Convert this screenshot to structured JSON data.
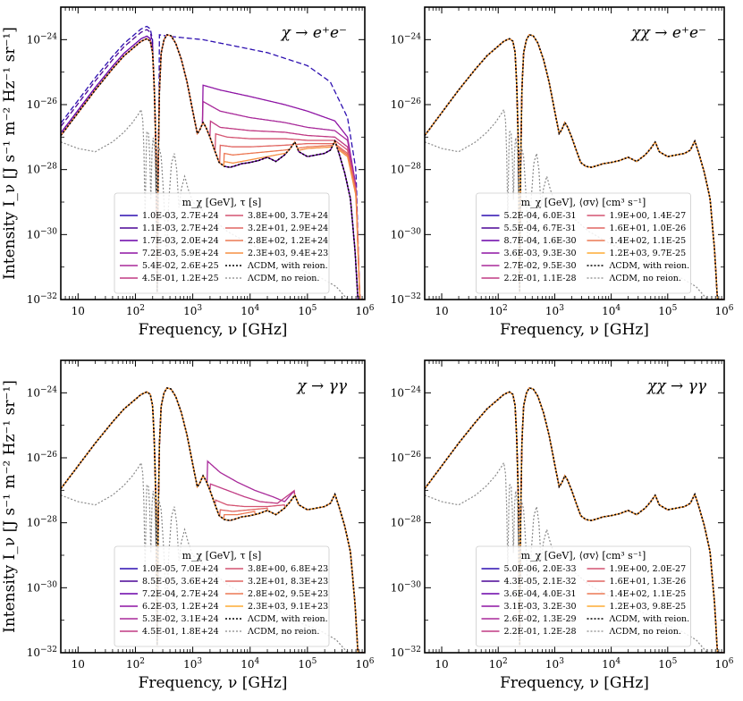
{
  "colors": {
    "c1": "#2d0fb0",
    "c2": "#4b0596",
    "c3": "#6a00a8",
    "c4": "#8e14a4",
    "c5": "#a8299a",
    "c6": "#c03a83",
    "c7": "#d45371",
    "c8": "#e16662",
    "c9": "#ec7853",
    "c10": "#f68f44",
    "c11": "#fdab33",
    "black": "#000000",
    "gray": "#888888"
  },
  "x_tick_labels": [
    "10",
    "10^2",
    "10^3",
    "10^4",
    "10^5",
    "10^6"
  ],
  "y_tick_labels": [
    "10^-24",
    "10^-26",
    "10^-28",
    "10^-30",
    "10^-32"
  ],
  "chart_data": [
    {
      "type": "line",
      "title": "χ → e⁺e⁻",
      "xlabel": "Frequency, ν [GHz]",
      "ylabel": "Intensity I_ν [J s⁻¹ m⁻² Hz⁻¹ sr⁻¹]",
      "xscale": "log",
      "yscale": "log",
      "xlim": [
        5,
        1000000
      ],
      "ylim": [
        1e-32,
        1e-23
      ],
      "legend_title": "m_χ [GeV], τ [s]",
      "legend": [
        "1.0E-03, 2.7E+24",
        "1.1E-03, 2.7E+24",
        "1.7E-03, 2.0E+24",
        "7.2E-03, 5.9E+24",
        "5.4E-02, 2.6E+25",
        "4.5E-01, 1.2E+25",
        "3.8E+00, 3.7E+24",
        "3.2E+01, 2.9E+24",
        "2.8E+02, 1.2E+24",
        "2.3E+03, 9.4E+23",
        "ΛCDM, with reion.",
        "ΛCDM, no reion."
      ],
      "series_styles": [
        "c1",
        "c2",
        "c3",
        "c4",
        "c5",
        "c6",
        "c7",
        "c8",
        "c9",
        "c10"
      ],
      "excess": [
        {
          "enhance_low": 2.4,
          "dashed": true,
          "tail": [
            {
              "f": 260,
              "y": -23.85
            },
            {
              "f": 400,
              "y": -23.9
            },
            {
              "f": 1500,
              "y": -24.0
            },
            {
              "f": 4000,
              "y": -24.15
            },
            {
              "f": 20000,
              "y": -24.4
            },
            {
              "f": 100000,
              "y": -24.8
            },
            {
              "f": 250000,
              "y": -25.3
            },
            {
              "f": 500000,
              "y": -26.4
            },
            {
              "f": 700000,
              "y": -28.0
            },
            {
              "f": 820000,
              "y": -32.0
            }
          ]
        },
        {
          "enhance_low": 1.9,
          "dashed": true,
          "tail": null
        },
        {
          "enhance_low": 1.2,
          "dashed": false,
          "tail": null
        },
        {
          "enhance_low": 1.0,
          "dashed": false,
          "tail": [
            {
              "f": 1500,
              "y": -25.4
            },
            {
              "f": 3000,
              "y": -25.55
            },
            {
              "f": 10000,
              "y": -25.75
            },
            {
              "f": 40000,
              "y": -26.0
            },
            {
              "f": 100000,
              "y": -26.2
            },
            {
              "f": 300000,
              "y": -26.5
            },
            {
              "f": 500000,
              "y": -27.0
            },
            {
              "f": 700000,
              "y": -28.5
            },
            {
              "f": 820000,
              "y": -32.0
            }
          ]
        },
        {
          "enhance_low": 1.0,
          "dashed": false,
          "tail": [
            {
              "f": 1500,
              "y": -25.9
            },
            {
              "f": 3000,
              "y": -26.2
            },
            {
              "f": 10000,
              "y": -26.4
            },
            {
              "f": 40000,
              "y": -26.55
            },
            {
              "f": 100000,
              "y": -26.7
            },
            {
              "f": 300000,
              "y": -26.8
            },
            {
              "f": 500000,
              "y": -27.1
            },
            {
              "f": 700000,
              "y": -28.5
            },
            {
              "f": 820000,
              "y": -32.0
            }
          ]
        },
        {
          "enhance_low": 1.0,
          "dashed": false,
          "tail": [
            {
              "f": 2000,
              "y": -26.5
            },
            {
              "f": 3000,
              "y": -26.7
            },
            {
              "f": 10000,
              "y": -26.8
            },
            {
              "f": 40000,
              "y": -26.85
            },
            {
              "f": 100000,
              "y": -26.95
            },
            {
              "f": 300000,
              "y": -27.0
            },
            {
              "f": 500000,
              "y": -27.3
            },
            {
              "f": 700000,
              "y": -28.6
            },
            {
              "f": 820000,
              "y": -32.0
            }
          ]
        },
        {
          "enhance_low": 1.0,
          "dashed": false,
          "tail": [
            {
              "f": 2500,
              "y": -26.9
            },
            {
              "f": 4000,
              "y": -27.0
            },
            {
              "f": 10000,
              "y": -27.05
            },
            {
              "f": 40000,
              "y": -27.05
            },
            {
              "f": 100000,
              "y": -27.1
            },
            {
              "f": 300000,
              "y": -27.1
            },
            {
              "f": 500000,
              "y": -27.4
            },
            {
              "f": 700000,
              "y": -28.6
            },
            {
              "f": 820000,
              "y": -32.0
            }
          ]
        },
        {
          "enhance_low": 1.0,
          "dashed": false,
          "tail": [
            {
              "f": 3000,
              "y": -27.25
            },
            {
              "f": 5000,
              "y": -27.3
            },
            {
              "f": 10000,
              "y": -27.3
            },
            {
              "f": 40000,
              "y": -27.25
            },
            {
              "f": 100000,
              "y": -27.2
            },
            {
              "f": 300000,
              "y": -27.2
            },
            {
              "f": 500000,
              "y": -27.5
            },
            {
              "f": 700000,
              "y": -28.7
            },
            {
              "f": 820000,
              "y": -32.0
            }
          ]
        },
        {
          "enhance_low": 1.0,
          "dashed": false,
          "tail": [
            {
              "f": 3500,
              "y": -27.5
            },
            {
              "f": 5000,
              "y": -27.55
            },
            {
              "f": 10000,
              "y": -27.5
            },
            {
              "f": 40000,
              "y": -27.4
            },
            {
              "f": 100000,
              "y": -27.3
            },
            {
              "f": 300000,
              "y": -27.25
            },
            {
              "f": 500000,
              "y": -27.55
            },
            {
              "f": 700000,
              "y": -28.7
            },
            {
              "f": 820000,
              "y": -32.0
            }
          ]
        },
        {
          "enhance_low": 1.0,
          "dashed": false,
          "tail": [
            {
              "f": 3500,
              "y": -27.75
            },
            {
              "f": 5000,
              "y": -27.8
            },
            {
              "f": 10000,
              "y": -27.7
            },
            {
              "f": 40000,
              "y": -27.5
            },
            {
              "f": 100000,
              "y": -27.35
            },
            {
              "f": 300000,
              "y": -27.3
            },
            {
              "f": 500000,
              "y": -27.6
            },
            {
              "f": 700000,
              "y": -28.8
            },
            {
              "f": 820000,
              "y": -32.0
            }
          ]
        }
      ]
    },
    {
      "type": "line",
      "title": "χχ → e⁺e⁻",
      "xlabel": "Frequency, ν [GHz]",
      "ylabel": "",
      "xscale": "log",
      "yscale": "log",
      "xlim": [
        5,
        1000000
      ],
      "ylim": [
        1e-32,
        1e-23
      ],
      "legend_title": "m_χ [GeV], ⟨σv⟩ [cm³ s⁻¹]",
      "legend": [
        "5.2E-04, 6.0E-31",
        "5.5E-04, 6.7E-31",
        "8.7E-04, 1.6E-30",
        "3.6E-03, 9.3E-30",
        "2.7E-02, 9.5E-30",
        "2.2E-01, 1.1E-28",
        "1.9E+00, 1.4E-27",
        "1.6E+01, 1.0E-26",
        "1.4E+02, 1.1E-25",
        "1.2E+03, 9.7E-25",
        "ΛCDM, with reion.",
        "ΛCDM, no reion."
      ],
      "series_styles": [
        "c1",
        "c2",
        "c3",
        "c4",
        "c5",
        "c6",
        "c7",
        "c8",
        "c9",
        "c11"
      ],
      "excess": []
    },
    {
      "type": "line",
      "title": "χ → γγ",
      "xlabel": "Frequency, ν [GHz]",
      "ylabel": "Intensity I_ν [J s⁻¹ m⁻² Hz⁻¹ sr⁻¹]",
      "xscale": "log",
      "yscale": "log",
      "xlim": [
        5,
        1000000
      ],
      "ylim": [
        1e-32,
        1e-23
      ],
      "legend_title": "m_χ [GeV], τ [s]",
      "legend": [
        "1.0E-05, 7.0E+24",
        "8.5E-05, 3.6E+24",
        "7.2E-04, 2.7E+24",
        "6.2E-03, 1.2E+24",
        "5.3E-02, 3.1E+24",
        "4.5E-01, 1.8E+24",
        "3.8E+00, 6.8E+23",
        "3.2E+01, 8.3E+23",
        "2.8E+02, 9.5E+23",
        "2.3E+03, 9.1E+23",
        "ΛCDM, with reion.",
        "ΛCDM, no reion."
      ],
      "series_styles": [
        "c1",
        "c2",
        "c3",
        "c4",
        "c5",
        "c6",
        "c7",
        "c8",
        "c9",
        "c11"
      ],
      "excess": [
        {
          "enhance_low": 1.0,
          "dashed": false,
          "tail": null
        },
        {
          "enhance_low": 1.0,
          "dashed": false,
          "tail": null
        },
        {
          "enhance_low": 1.0,
          "dashed": false,
          "tail": null
        },
        {
          "enhance_low": 1.0,
          "dashed": false,
          "tail": null
        },
        {
          "enhance_low": 1.0,
          "dashed": false,
          "tail": [
            {
              "f": 1800,
              "y": -26.1
            },
            {
              "f": 3000,
              "y": -26.45
            },
            {
              "f": 6000,
              "y": -26.75
            },
            {
              "f": 12000,
              "y": -27.0
            },
            {
              "f": 25000,
              "y": -27.2
            },
            {
              "f": 40000,
              "y": -27.35
            },
            {
              "f": 60000,
              "y": -27.0
            }
          ]
        },
        {
          "enhance_low": 1.0,
          "dashed": false,
          "tail": [
            {
              "f": 2000,
              "y": -26.8
            },
            {
              "f": 4000,
              "y": -27.0
            },
            {
              "f": 8000,
              "y": -27.2
            },
            {
              "f": 15000,
              "y": -27.35
            },
            {
              "f": 30000,
              "y": -27.4
            },
            {
              "f": 60000,
              "y": -27.0
            }
          ]
        },
        {
          "enhance_low": 1.0,
          "dashed": false,
          "tail": [
            {
              "f": 2500,
              "y": -27.3
            },
            {
              "f": 4000,
              "y": -27.45
            },
            {
              "f": 8000,
              "y": -27.5
            },
            {
              "f": 20000,
              "y": -27.5
            },
            {
              "f": 40000,
              "y": -27.45
            }
          ]
        },
        {
          "enhance_low": 1.0,
          "dashed": false,
          "tail": [
            {
              "f": 3000,
              "y": -27.6
            },
            {
              "f": 5000,
              "y": -27.65
            },
            {
              "f": 10000,
              "y": -27.6
            },
            {
              "f": 20000,
              "y": -27.55
            }
          ]
        },
        {
          "enhance_low": 1.0,
          "dashed": false,
          "tail": [
            {
              "f": 3500,
              "y": -27.75
            },
            {
              "f": 6000,
              "y": -27.75
            },
            {
              "f": 12000,
              "y": -27.65
            }
          ]
        },
        {
          "enhance_low": 1.0,
          "dashed": false,
          "tail": null
        }
      ]
    },
    {
      "type": "line",
      "title": "χχ → γγ",
      "xlabel": "Frequency, ν [GHz]",
      "ylabel": "",
      "xscale": "log",
      "yscale": "log",
      "xlim": [
        5,
        1000000
      ],
      "ylim": [
        1e-32,
        1e-23
      ],
      "legend_title": "m_χ [GeV], ⟨σv⟩ [cm³ s⁻¹]",
      "legend": [
        "5.0E-06, 2.0E-33",
        "4.3E-05, 2.1E-32",
        "3.6E-04, 4.0E-31",
        "3.1E-03, 3.2E-30",
        "2.6E-02, 1.3E-29",
        "2.2E-01, 1.2E-28",
        "1.9E+00, 2.0E-27",
        "1.6E+01, 1.3E-26",
        "1.4E+02, 1.1E-25",
        "1.2E+03, 9.8E-25",
        "ΛCDM, with reion.",
        "ΛCDM, no reion."
      ],
      "series_styles": [
        "c1",
        "c2",
        "c3",
        "c4",
        "c5",
        "c6",
        "c7",
        "c8",
        "c9",
        "c11"
      ],
      "excess": []
    }
  ]
}
